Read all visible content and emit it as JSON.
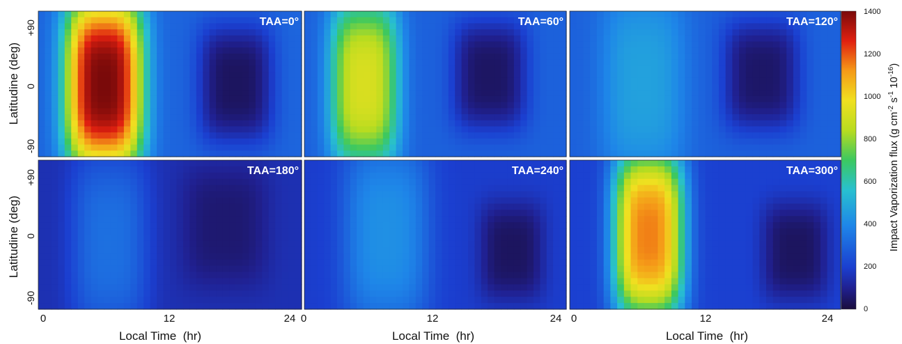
{
  "figure": {
    "ylabel": "Latitudine (deg)",
    "xlabel": "Local Time  (hr)",
    "colorbar_label_main": "Impact Vaporization flux (g cm",
    "colorbar_label_sup1": "-2",
    "colorbar_label_mid": " s",
    "colorbar_label_sup2": "-1",
    "colorbar_label_mid2": " 10",
    "colorbar_label_sup3": "-16",
    "colorbar_label_end": ")"
  },
  "chart_data": {
    "type": "heatmap",
    "xlabel": "Local Time  (hr)",
    "ylabel": "Latitudine (deg)",
    "x_ticks": [
      "0",
      "12",
      "24"
    ],
    "y_ticks": [
      "+90",
      "0",
      "-90"
    ],
    "xlim": [
      0,
      24
    ],
    "ylim": [
      -90,
      90
    ],
    "colorbar": {
      "label": "Impact Vaporization flux (g cm-2 s-1 10-16)",
      "range": [
        0,
        1400
      ],
      "ticks": [
        "0",
        "200",
        "400",
        "600",
        "800",
        "1000",
        "1200",
        "1400"
      ],
      "colormap": "jet"
    },
    "panels": [
      {
        "title": "TAA=0°",
        "background": 300,
        "day_peak": 1400,
        "day_center": [
          6,
          0
        ],
        "day_spread": [
          3.6,
          110
        ],
        "night_value": 40,
        "night_center": [
          18,
          0
        ],
        "night_spread": [
          3.5,
          75
        ]
      },
      {
        "title": "TAA=60°",
        "background": 290,
        "day_peak": 920,
        "day_center": [
          5.5,
          0
        ],
        "day_spread": [
          3.2,
          105
        ],
        "night_value": 45,
        "night_center": [
          17,
          10
        ],
        "night_spread": [
          3.5,
          70
        ]
      },
      {
        "title": "TAA=120°",
        "background": 290,
        "day_peak": 470,
        "day_center": [
          6.5,
          0
        ],
        "day_spread": [
          3.8,
          120
        ],
        "night_value": 50,
        "night_center": [
          17,
          10
        ],
        "night_spread": [
          3.5,
          70
        ]
      },
      {
        "title": "TAA=180°",
        "background": 150,
        "day_peak": 330,
        "day_center": [
          6.5,
          -10
        ],
        "day_spread": [
          3.5,
          110
        ],
        "night_value": 60,
        "night_center": [
          17,
          10
        ],
        "night_spread": [
          4,
          75
        ]
      },
      {
        "title": "TAA=240°",
        "background": 190,
        "day_peak": 420,
        "day_center": [
          7.5,
          0
        ],
        "day_spread": [
          4,
          115
        ],
        "night_value": 40,
        "night_center": [
          19,
          -20
        ],
        "night_spread": [
          3,
          60
        ]
      },
      {
        "title": "TAA=300°",
        "background": 200,
        "day_peak": 1150,
        "day_center": [
          7,
          0
        ],
        "day_spread": [
          3.2,
          105
        ],
        "night_value": 40,
        "night_center": [
          20,
          -20
        ],
        "night_spread": [
          3,
          60
        ]
      }
    ]
  }
}
